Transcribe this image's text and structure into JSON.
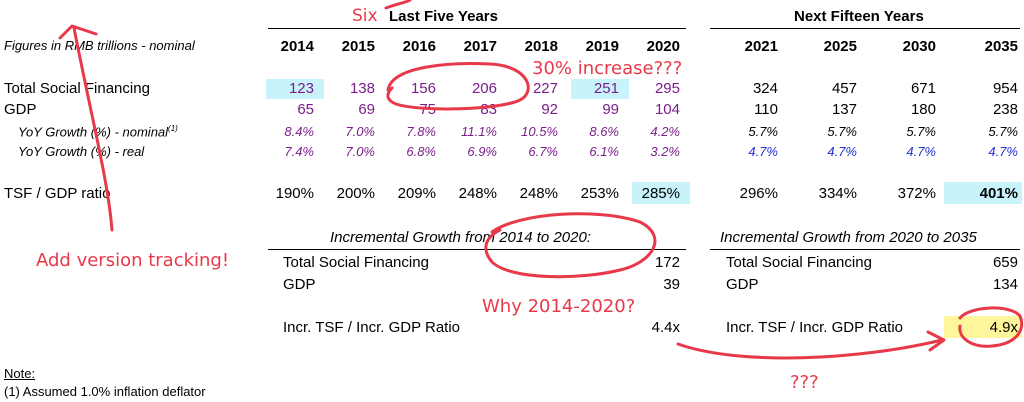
{
  "headers": {
    "figures_label": "Figures in RMB trillions - nominal",
    "last_five": "Last Five Years",
    "next_fifteen": "Next Fifteen Years",
    "years_hist": [
      "2014",
      "2015",
      "2016",
      "2017",
      "2018",
      "2019",
      "2020"
    ],
    "years_proj": [
      "2021",
      "2025",
      "2030",
      "2035"
    ]
  },
  "rows": {
    "tsf": {
      "label": "Total Social Financing",
      "hist": [
        "123",
        "138",
        "156",
        "206",
        "227",
        "251",
        "295"
      ],
      "proj": [
        "324",
        "457",
        "671",
        "954"
      ]
    },
    "gdp": {
      "label": "GDP",
      "hist": [
        "65",
        "69",
        "75",
        "83",
        "92",
        "99",
        "104"
      ],
      "proj": [
        "110",
        "137",
        "180",
        "238"
      ]
    },
    "yoy_nominal": {
      "label": "YoY Growth (%) - nominal",
      "sup": "(1)",
      "hist": [
        "8.4%",
        "7.0%",
        "7.8%",
        "11.1%",
        "10.5%",
        "8.6%",
        "4.2%"
      ],
      "proj": [
        "5.7%",
        "5.7%",
        "5.7%",
        "5.7%"
      ]
    },
    "yoy_real": {
      "label": "YoY Growth (%) - real",
      "hist": [
        "7.4%",
        "7.0%",
        "6.8%",
        "6.9%",
        "6.7%",
        "6.1%",
        "3.2%"
      ],
      "proj": [
        "4.7%",
        "4.7%",
        "4.7%",
        "4.7%"
      ]
    },
    "ratio": {
      "label": "TSF / GDP ratio",
      "hist": [
        "190%",
        "200%",
        "209%",
        "248%",
        "248%",
        "253%",
        "285%"
      ],
      "proj": [
        "296%",
        "334%",
        "372%",
        "401%"
      ]
    }
  },
  "incremental_left": {
    "title": "Incremental Growth from 2014 to 2020:",
    "tsf_label": "Total Social Financing",
    "tsf_value": "172",
    "gdp_label": "GDP",
    "gdp_value": "39",
    "ratio_label": "Incr. TSF / Incr. GDP Ratio",
    "ratio_value": "4.4x"
  },
  "incremental_right": {
    "title": "Incremental Growth from 2020 to 2035",
    "tsf_label": "Total Social Financing",
    "tsf_value": "659",
    "gdp_label": "GDP",
    "gdp_value": "134",
    "ratio_label": "Incr. TSF / Incr. GDP Ratio",
    "ratio_value": "4.9x"
  },
  "note": {
    "title": "Note:",
    "text": "(1) Assumed 1.0% inflation deflator"
  },
  "annotations": {
    "six": "Six",
    "thirty_pct": "30% increase???",
    "version": "Add version tracking!",
    "why_years": "Why 2014-2020?",
    "question": "???"
  },
  "colors": {
    "highlight_cyan": "#c9f3fb",
    "highlight_yellow": "#fff59a",
    "annotation_red": "#e8394a",
    "purple_text": "#7a1e8a",
    "blue_text": "#1f2fd6"
  }
}
